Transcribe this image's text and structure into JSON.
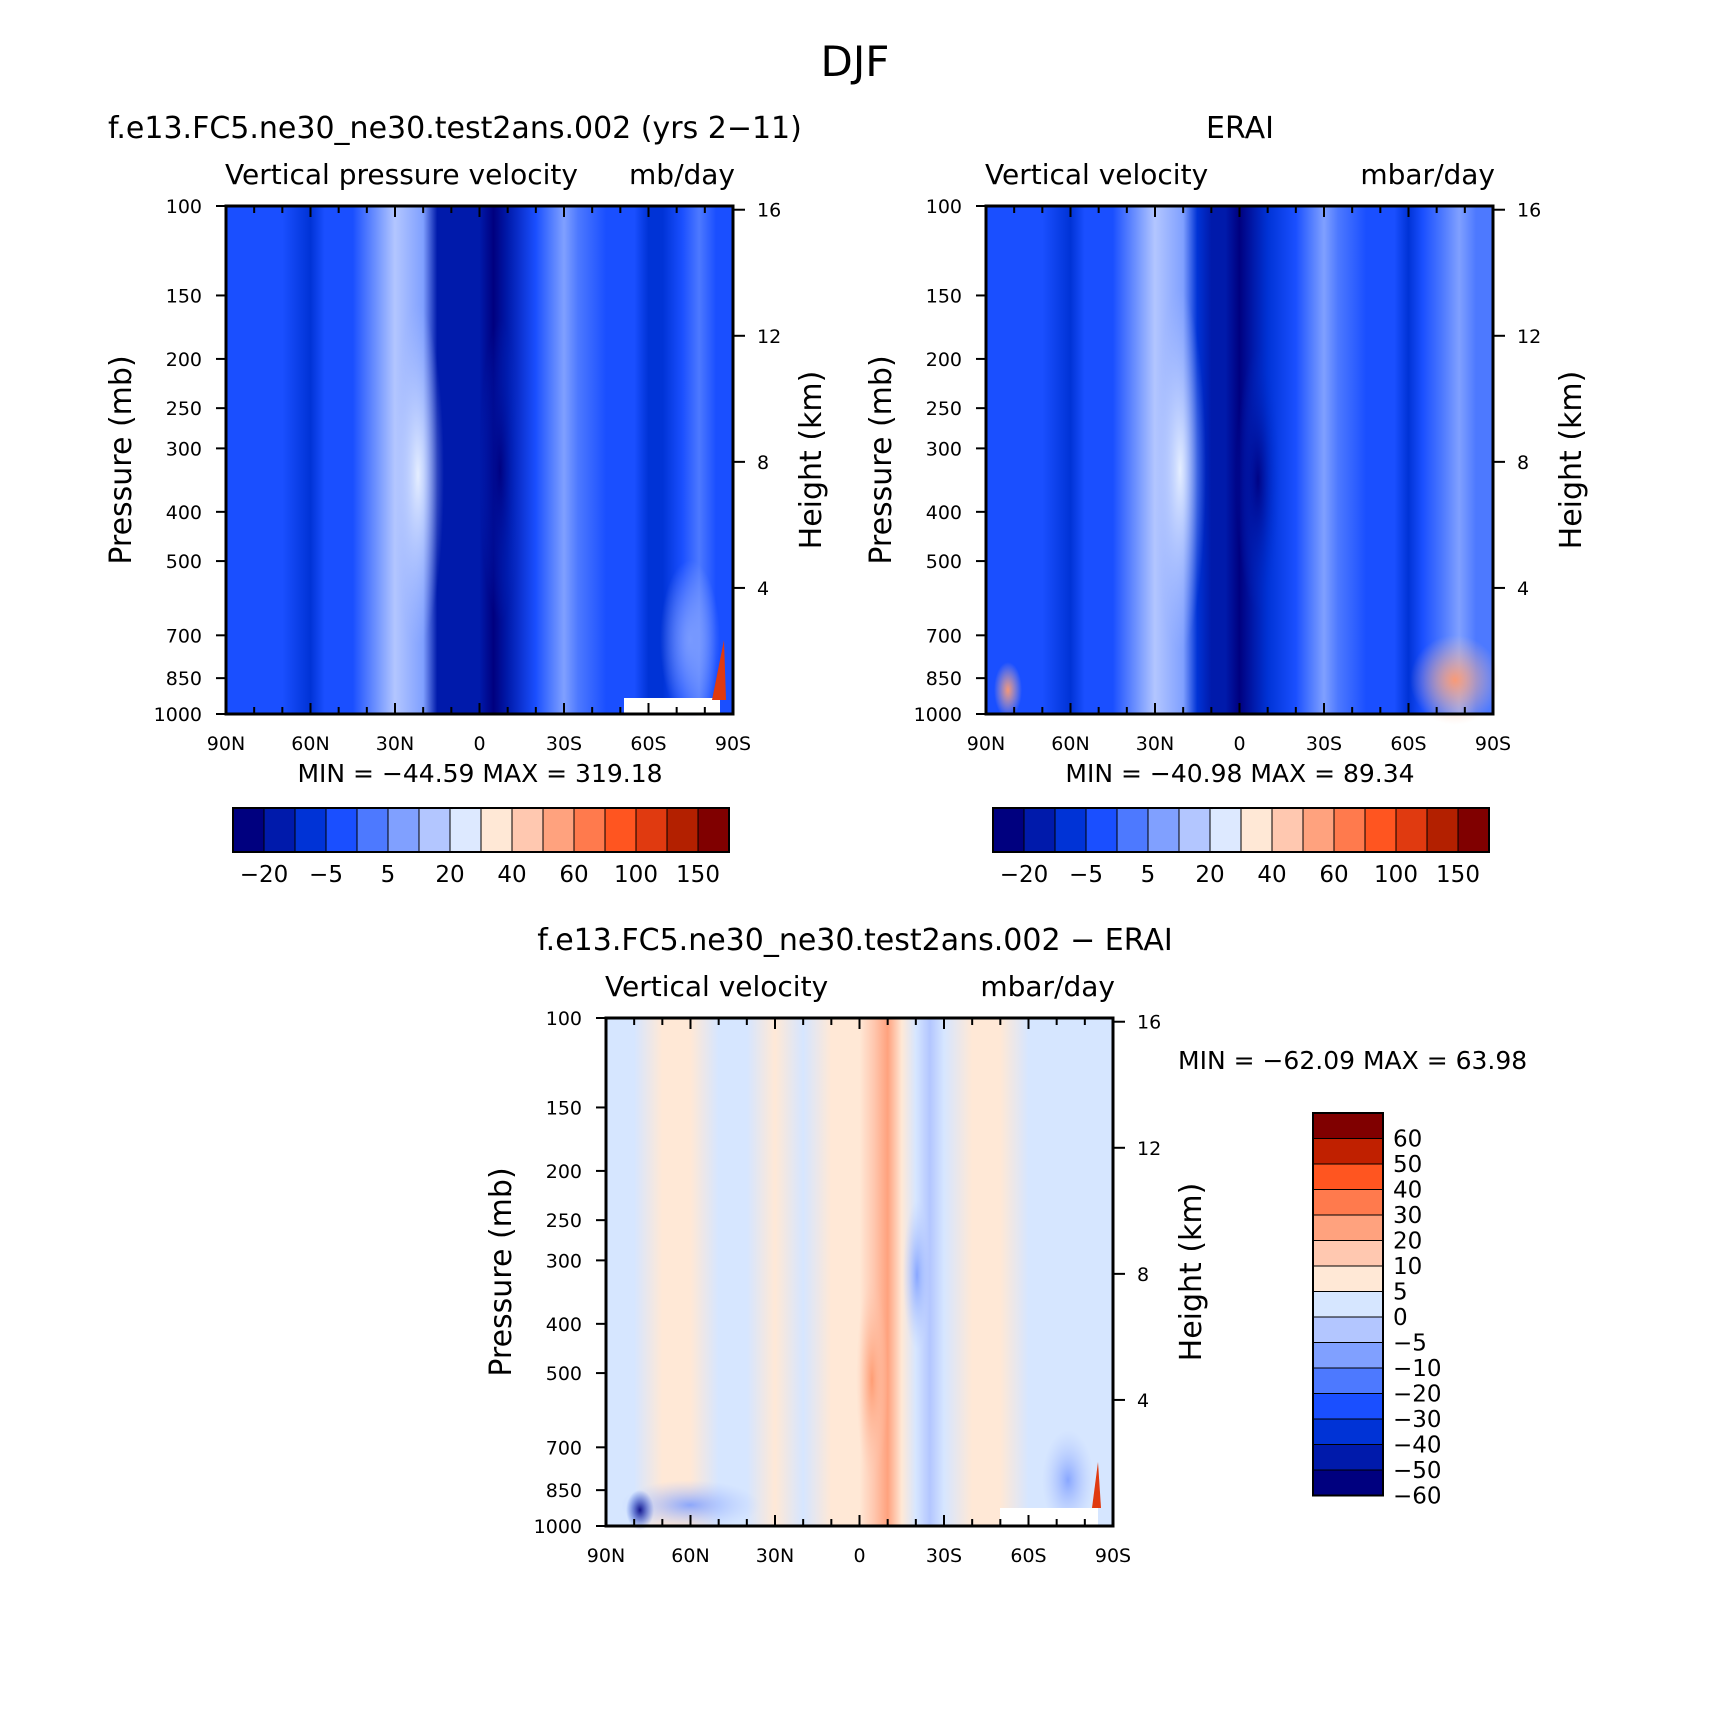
{
  "figure": {
    "title": "DJF"
  },
  "colors": {
    "main": [
      "#00007f",
      "#001aab",
      "#0033d6",
      "#1a4fff",
      "#4d79ff",
      "#80a0ff",
      "#b3c6ff",
      "#dde9ff",
      "#ffe8d6",
      "#ffc8b0",
      "#ffa27e",
      "#ff7a4d",
      "#ff5520",
      "#e03a10",
      "#b32000",
      "#800000"
    ],
    "diff": [
      "#00007f",
      "#001aab",
      "#0033d6",
      "#1a4fff",
      "#4d79ff",
      "#80a0ff",
      "#b3c6ff",
      "#d6e6ff",
      "#ffe8d6",
      "#ffc8b0",
      "#ffa27e",
      "#ff7a4d",
      "#ff5520",
      "#c02000",
      "#800000"
    ]
  },
  "chart_data": [
    {
      "type": "heatmap",
      "panel": "model",
      "title": "f.e13.FC5.ne30_ne30.test2ans.002 (yrs 2−11)",
      "left_subtitle": "Vertical  pressure  velocity",
      "right_subtitle": "mb/day",
      "ylabel": "Pressure  (mb)",
      "ylabel_right": "Height  (km)",
      "x_ticks": [
        "90N",
        "60N",
        "30N",
        "0",
        "30S",
        "60S",
        "90S"
      ],
      "x_values": [
        90,
        60,
        30,
        0,
        -30,
        -60,
        -90
      ],
      "y_ticks": [
        100,
        150,
        200,
        250,
        300,
        400,
        500,
        700,
        850,
        1000
      ],
      "y_ticks_right": [
        16,
        12,
        8,
        4
      ],
      "y_range": [
        100,
        1000
      ],
      "y_scale": "log",
      "stats": "MIN  =  −44.59    MAX  =  319.18",
      "min": -44.59,
      "max": 319.18,
      "colorbar_labels": [
        "−20",
        "−5",
        "5",
        "20",
        "40",
        "60",
        "100",
        "150"
      ],
      "lat": [
        90,
        75,
        70,
        60,
        55,
        45,
        35,
        30,
        20,
        15,
        10,
        5,
        0,
        -5,
        -10,
        -20,
        -25,
        -30,
        -35,
        -45,
        -55,
        -60,
        -65,
        -72,
        -78,
        -84,
        -90
      ],
      "fields": [
        -10,
        -20,
        -10,
        -25,
        -10,
        -10,
        5,
        15,
        10,
        -25,
        -35,
        -30,
        -35,
        -40,
        -30,
        -10,
        -5,
        5,
        -5,
        -10,
        -10,
        -25,
        -20,
        -10,
        -10,
        -15,
        -10
      ],
      "color_index": [
        3,
        3,
        3,
        2,
        3,
        3,
        5,
        6,
        5,
        1,
        1,
        1,
        1,
        0,
        1,
        3,
        4,
        5,
        4,
        3,
        3,
        2,
        2,
        3,
        4,
        3,
        3
      ]
    },
    {
      "type": "heatmap",
      "panel": "obs",
      "title": "ERAI",
      "left_subtitle": "Vertical  velocity",
      "right_subtitle": "mbar/day",
      "ylabel": "Pressure  (mb)",
      "ylabel_right": "Height  (km)",
      "x_ticks": [
        "90N",
        "60N",
        "30N",
        "0",
        "30S",
        "60S",
        "90S"
      ],
      "x_values": [
        90,
        60,
        30,
        0,
        -30,
        -60,
        -90
      ],
      "y_ticks": [
        100,
        150,
        200,
        250,
        300,
        400,
        500,
        700,
        850,
        1000
      ],
      "y_ticks_right": [
        16,
        12,
        8,
        4
      ],
      "y_range": [
        100,
        1000
      ],
      "y_scale": "log",
      "stats": "MIN  =  −40.98    MAX  =    89.34",
      "min": -40.98,
      "max": 89.34,
      "colorbar_labels": [
        "−20",
        "−5",
        "5",
        "20",
        "40",
        "60",
        "100",
        "150"
      ],
      "lat": [
        90,
        75,
        70,
        60,
        55,
        45,
        35,
        30,
        20,
        15,
        10,
        5,
        0,
        -5,
        -10,
        -20,
        -25,
        -30,
        -35,
        -45,
        -55,
        -60,
        -65,
        -72,
        -78,
        -84,
        -90
      ],
      "color_index": [
        3,
        3,
        3,
        2,
        3,
        3,
        5,
        6,
        5,
        2,
        1,
        1,
        0,
        1,
        2,
        3,
        4,
        5,
        4,
        3,
        3,
        2,
        3,
        4,
        5,
        4,
        4
      ]
    },
    {
      "type": "heatmap",
      "panel": "difference",
      "title": "f.e13.FC5.ne30_ne30.test2ans.002  −  ERAI",
      "left_subtitle": "Vertical  velocity",
      "right_subtitle": "mbar/day",
      "ylabel": "Pressure  (mb)",
      "ylabel_right": "Height  (km)",
      "x_ticks": [
        "90N",
        "60N",
        "30N",
        "0",
        "30S",
        "60S",
        "90S"
      ],
      "x_values": [
        90,
        60,
        30,
        0,
        -30,
        -60,
        -90
      ],
      "y_ticks": [
        100,
        150,
        200,
        250,
        300,
        400,
        500,
        700,
        850,
        1000
      ],
      "y_ticks_right": [
        16,
        12,
        8,
        4
      ],
      "y_range": [
        100,
        1000
      ],
      "y_scale": "log",
      "stats": "MIN  =  −62.09    MAX  =    63.98",
      "min": -62.09,
      "max": 63.98,
      "colorbar_labels": [
        "60",
        "50",
        "40",
        "30",
        "20",
        "10",
        "5",
        "0",
        "−5",
        "−10",
        "−20",
        "−30",
        "−40",
        "−50",
        "−60"
      ],
      "lat": [
        90,
        80,
        70,
        60,
        50,
        40,
        30,
        20,
        10,
        5,
        0,
        -5,
        -10,
        -15,
        -20,
        -25,
        -30,
        -40,
        -50,
        -60,
        -70,
        -80,
        -90
      ],
      "color_index": [
        7,
        7,
        8,
        8,
        7,
        7,
        8,
        7,
        8,
        8,
        8,
        9,
        10,
        8,
        7,
        6,
        7,
        8,
        8,
        7,
        7,
        7,
        7
      ]
    }
  ]
}
